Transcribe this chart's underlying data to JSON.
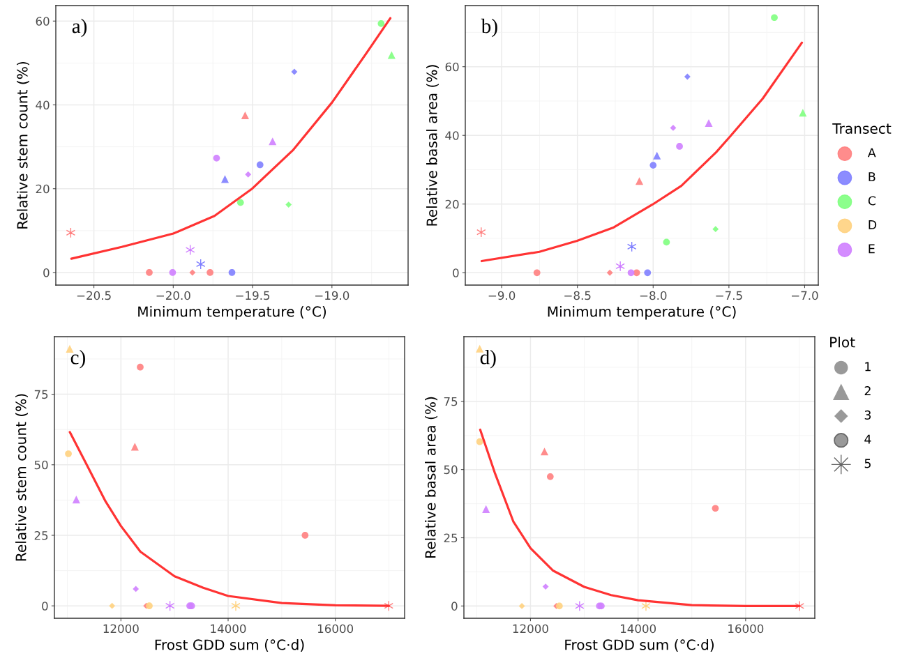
{
  "chart_data": [
    {
      "type": "scatter",
      "title": "a)",
      "xlabel": "Minimum temperature (°C)",
      "ylabel": "Relative stem count (%)",
      "xlim": [
        -20.74,
        -18.52
      ],
      "ylim": [
        -3,
        63.7
      ],
      "xticks": [
        {
          "value": -20.5,
          "label": "−20.5"
        },
        {
          "value": -20.0,
          "label": "−20.0"
        },
        {
          "value": -19.5,
          "label": "−19.5"
        },
        {
          "value": -19.0,
          "label": "−19.0"
        }
      ],
      "yticks": [
        0,
        20,
        40,
        60
      ],
      "grid": true,
      "series": [
        {
          "color": "#ff7f7f",
          "marker": "circle",
          "x": [
            -20.151,
            -19.768
          ],
          "values": [
            0,
            0
          ]
        },
        {
          "color": "#ff7f7f",
          "marker": "triangle",
          "x": [
            -19.547
          ],
          "values": [
            37.5
          ]
        },
        {
          "color": "#ff7f7f",
          "marker": "diamond",
          "x": [
            -19.879
          ],
          "values": [
            0
          ]
        },
        {
          "color": "#ff7f7f",
          "marker": "cross",
          "x": [
            -20.646
          ],
          "values": [
            9.5
          ]
        },
        {
          "color": "#7f7fff",
          "marker": "circle",
          "x": [
            -19.63,
            -19.453
          ],
          "values": [
            0,
            25.7
          ]
        },
        {
          "color": "#7f7fff",
          "marker": "triangle",
          "x": [
            -19.674
          ],
          "values": [
            22.3
          ]
        },
        {
          "color": "#7f7fff",
          "marker": "diamond",
          "x": [
            -19.237
          ],
          "values": [
            47.9
          ]
        },
        {
          "color": "#7f7fff",
          "marker": "cross",
          "x": [
            -19.827
          ],
          "values": [
            2.0
          ]
        },
        {
          "color": "#7fff7f",
          "marker": "circle",
          "x": [
            -19.576,
            -18.69
          ],
          "values": [
            16.7,
            59.4
          ]
        },
        {
          "color": "#7fff7f",
          "marker": "triangle",
          "x": [
            -18.624
          ],
          "values": [
            51.9
          ]
        },
        {
          "color": "#7fff7f",
          "marker": "diamond",
          "x": [
            -19.273
          ],
          "values": [
            16.2
          ]
        },
        {
          "color": "#cf7fff",
          "marker": "circle",
          "x": [
            -20.004,
            -19.727
          ],
          "values": [
            0,
            27.3
          ]
        },
        {
          "color": "#cf7fff",
          "marker": "triangle",
          "x": [
            -19.374
          ],
          "values": [
            31.3
          ]
        },
        {
          "color": "#cf7fff",
          "marker": "diamond",
          "x": [
            -19.528
          ],
          "values": [
            23.4
          ]
        },
        {
          "color": "#cf7fff",
          "marker": "cross",
          "x": [
            -19.893
          ],
          "values": [
            5.4
          ]
        },
        {
          "type": "line",
          "color": "#ff3333",
          "x": [
            -20.642,
            -20.325,
            -19.999,
            -19.74,
            -19.506,
            -19.243,
            -18.999,
            -18.789,
            -18.632
          ],
          "values": [
            3.3,
            6.1,
            9.3,
            13.5,
            19.9,
            29.3,
            40.6,
            52.0,
            60.7
          ]
        }
      ]
    },
    {
      "type": "scatter",
      "title": "b)",
      "xlabel": "Minimum temperature (°C)",
      "ylabel": "Relative basal area (%)",
      "xlim": [
        -9.24,
        -6.91
      ],
      "ylim": [
        -3.6,
        77.8
      ],
      "xticks": [
        {
          "value": -9.0,
          "label": "−9.0"
        },
        {
          "value": -8.5,
          "label": "−8.5"
        },
        {
          "value": -8.0,
          "label": "−8.0"
        },
        {
          "value": -7.5,
          "label": "−7.5"
        },
        {
          "value": -7.0,
          "label": "−7.0"
        }
      ],
      "yticks": [
        0,
        20,
        40,
        60
      ],
      "grid": true,
      "annotations": [
        "Transect",
        "A",
        "B",
        "C",
        "D",
        "E"
      ],
      "colors": [
        "#ff7f7f",
        "#7f7fff",
        "#7fff7f",
        "#ffd27f",
        "#cf7fff"
      ],
      "series": [
        {
          "color": "#ff7f7f",
          "marker": "circle",
          "x": [
            -8.767,
            -8.109
          ],
          "values": [
            0,
            0
          ]
        },
        {
          "color": "#ff7f7f",
          "marker": "triangle",
          "x": [
            -8.091
          ],
          "values": [
            26.7
          ]
        },
        {
          "color": "#ff7f7f",
          "marker": "diamond",
          "x": [
            -8.286
          ],
          "values": [
            0
          ]
        },
        {
          "color": "#ff7f7f",
          "marker": "cross",
          "x": [
            -9.135
          ],
          "values": [
            11.8
          ]
        },
        {
          "color": "#7f7fff",
          "marker": "circle",
          "x": [
            -8.037,
            -8.0
          ],
          "values": [
            0,
            31.3
          ]
        },
        {
          "color": "#7f7fff",
          "marker": "triangle",
          "x": [
            -7.975
          ],
          "values": [
            34.1
          ]
        },
        {
          "color": "#7f7fff",
          "marker": "diamond",
          "x": [
            -7.774
          ],
          "values": [
            57.1
          ]
        },
        {
          "color": "#7f7fff",
          "marker": "cross",
          "x": [
            -8.141
          ],
          "values": [
            7.6
          ]
        },
        {
          "color": "#7fff7f",
          "marker": "circle",
          "x": [
            -7.912,
            -7.2
          ],
          "values": [
            8.9,
            74.3
          ]
        },
        {
          "color": "#7fff7f",
          "marker": "triangle",
          "x": [
            -7.012
          ],
          "values": [
            46.6
          ]
        },
        {
          "color": "#7fff7f",
          "marker": "diamond",
          "x": [
            -7.588
          ],
          "values": [
            12.7
          ]
        },
        {
          "color": "#cf7fff",
          "marker": "circle",
          "x": [
            -8.146,
            -7.826
          ],
          "values": [
            0,
            36.8
          ]
        },
        {
          "color": "#cf7fff",
          "marker": "triangle",
          "x": [
            -7.633
          ],
          "values": [
            43.6
          ]
        },
        {
          "color": "#cf7fff",
          "marker": "diamond",
          "x": [
            -7.868
          ],
          "values": [
            42.2
          ]
        },
        {
          "color": "#cf7fff",
          "marker": "cross",
          "x": [
            -8.217
          ],
          "values": [
            1.9
          ]
        },
        {
          "type": "line",
          "color": "#ff3333",
          "x": [
            -9.132,
            -8.751,
            -8.502,
            -8.26,
            -8.003,
            -7.814,
            -7.584,
            -7.492,
            -7.277,
            -7.018
          ],
          "values": [
            3.4,
            6.1,
            9.3,
            13.2,
            19.9,
            25.3,
            35.1,
            39.7,
            50.7,
            67.0
          ]
        }
      ]
    },
    {
      "type": "scatter",
      "title": "c)",
      "xlabel": "Frost GDD sum (°C·d)",
      "ylabel": "Relative stem count (%)",
      "xlim": [
        10759,
        17293
      ],
      "ylim": [
        -4.4,
        95.4
      ],
      "xticks": [
        12000,
        14000,
        16000
      ],
      "yticks": [
        0,
        25,
        50,
        75
      ],
      "grid": true,
      "series": [
        {
          "color": "#ff7f7f",
          "marker": "circle",
          "x": [
            12360,
            15436
          ],
          "values": [
            84.6,
            25.0
          ]
        },
        {
          "color": "#ff7f7f",
          "marker": "triangle",
          "x": [
            12260
          ],
          "values": [
            56.4
          ]
        },
        {
          "color": "#ff7f7f",
          "marker": "diamond",
          "x": [
            12473
          ],
          "values": [
            0
          ]
        },
        {
          "color": "#ff7f7f",
          "marker": "cross",
          "x": [
            16997
          ],
          "values": [
            0
          ]
        },
        {
          "color": "#ffd27f",
          "marker": "circle",
          "x": [
            11020,
            12529
          ],
          "values": [
            53.9,
            0
          ]
        },
        {
          "color": "#ffd27f",
          "marker": "triangle",
          "x": [
            11045
          ],
          "values": [
            91.1
          ]
        },
        {
          "color": "#ffd27f",
          "marker": "diamond",
          "x": [
            11835
          ],
          "values": [
            0
          ]
        },
        {
          "color": "#ffd27f",
          "marker": "cross",
          "x": [
            14143
          ],
          "values": [
            0
          ]
        },
        {
          "color": "#cf7fff",
          "marker": "circle",
          "x": [
            13284,
            13319
          ],
          "values": [
            0,
            0
          ]
        },
        {
          "color": "#cf7fff",
          "marker": "triangle",
          "x": [
            11167
          ],
          "values": [
            37.7
          ]
        },
        {
          "color": "#cf7fff",
          "marker": "diamond",
          "x": [
            12278
          ],
          "values": [
            6.0
          ]
        },
        {
          "color": "#cf7fff",
          "marker": "cross",
          "x": [
            12915
          ],
          "values": [
            0
          ]
        },
        {
          "type": "line",
          "color": "#ff3333",
          "x": [
            11046,
            11367,
            11714,
            12000,
            12364,
            13000,
            13536,
            14000,
            15000,
            16000,
            16998
          ],
          "values": [
            61.6,
            49.8,
            37.0,
            28.3,
            19.2,
            10.5,
            6.4,
            3.5,
            1.0,
            0.2,
            0
          ]
        }
      ]
    },
    {
      "type": "scatter",
      "title": "d)",
      "xlabel": "Frost GDD sum (°C·d)",
      "ylabel": "Relative basal area (%)",
      "xlim": [
        10762,
        17286
      ],
      "ylim": [
        -4.5,
        98.7
      ],
      "xticks": [
        12000,
        14000,
        16000
      ],
      "yticks": [
        0,
        25,
        50,
        75
      ],
      "grid": true,
      "annotations": [
        "Plot",
        "1",
        "2",
        "3",
        "4",
        "5"
      ],
      "series": [
        {
          "color": "#ff7f7f",
          "marker": "circle",
          "x": [
            12368,
            15437
          ],
          "values": [
            47.4,
            35.8
          ]
        },
        {
          "color": "#ff7f7f",
          "marker": "triangle",
          "x": [
            12260
          ],
          "values": [
            56.6
          ]
        },
        {
          "color": "#ff7f7f",
          "marker": "diamond",
          "x": [
            12481
          ],
          "values": [
            0
          ]
        },
        {
          "color": "#ff7f7f",
          "marker": "cross",
          "x": [
            17004
          ],
          "values": [
            0
          ]
        },
        {
          "color": "#ffd27f",
          "marker": "circle",
          "x": [
            11056,
            12537
          ],
          "values": [
            60.2,
            0
          ]
        },
        {
          "color": "#ffd27f",
          "marker": "triangle",
          "x": [
            11056
          ],
          "values": [
            94.3
          ]
        },
        {
          "color": "#ffd27f",
          "marker": "diamond",
          "x": [
            11840
          ],
          "values": [
            0
          ]
        },
        {
          "color": "#ffd27f",
          "marker": "cross",
          "x": [
            14147
          ],
          "values": [
            0
          ]
        },
        {
          "color": "#cf7fff",
          "marker": "circle",
          "x": [
            13281,
            13316
          ],
          "values": [
            0,
            0
          ]
        },
        {
          "color": "#cf7fff",
          "marker": "triangle",
          "x": [
            11173
          ],
          "values": [
            35.5
          ]
        },
        {
          "color": "#cf7fff",
          "marker": "diamond",
          "x": [
            12281
          ],
          "values": [
            7.1
          ]
        },
        {
          "color": "#cf7fff",
          "marker": "cross",
          "x": [
            12913
          ],
          "values": [
            0
          ]
        },
        {
          "type": "line",
          "color": "#ff3333",
          "x": [
            11065,
            11333,
            11680,
            12000,
            12416,
            13000,
            13498,
            14000,
            15000,
            16000,
            16996
          ],
          "values": [
            64.6,
            49.0,
            31.0,
            21.2,
            13.0,
            7.0,
            4.0,
            2.1,
            0.3,
            0,
            0
          ]
        }
      ]
    }
  ]
}
